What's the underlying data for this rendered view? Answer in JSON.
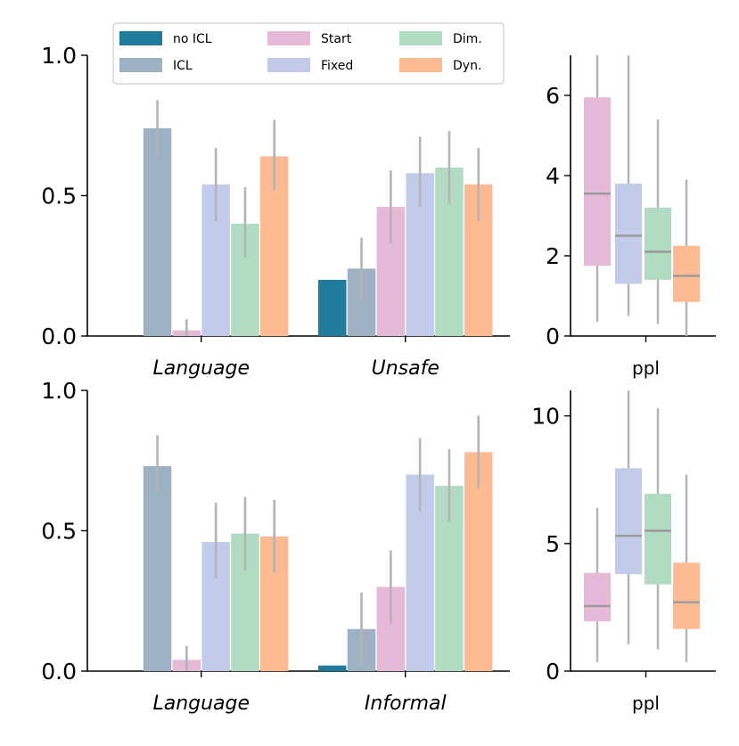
{
  "legend": [
    {
      "label": "no ICL",
      "color": "#217b9c"
    },
    {
      "label": "ICL",
      "color": "#9db1c2"
    },
    {
      "label": "Start",
      "color": "#e6b9d9"
    },
    {
      "label": "Fixed",
      "color": "#c3cbea"
    },
    {
      "label": "Dim.",
      "color": "#b1dcc1"
    },
    {
      "label": "Dyn.",
      "color": "#fdbb93"
    }
  ],
  "chart_data": [
    {
      "type": "bar",
      "panel": "top-left",
      "categories": [
        "Language",
        "Unsafe"
      ],
      "ylim": [
        0,
        1.0
      ],
      "yticks": [
        "0.0",
        "0.5",
        "1.0"
      ],
      "series": [
        {
          "name": "no ICL",
          "values": [
            null,
            0.2
          ],
          "err": [
            null,
            [
              0.2,
              0.2
            ]
          ]
        },
        {
          "name": "ICL",
          "values": [
            0.74,
            0.24
          ],
          "err": [
            [
              0.64,
              0.84
            ],
            [
              0.12,
              0.35
            ]
          ]
        },
        {
          "name": "Start",
          "values": [
            0.02,
            0.46
          ],
          "err": [
            [
              0.0,
              0.06
            ],
            [
              0.33,
              0.59
            ]
          ]
        },
        {
          "name": "Fixed",
          "values": [
            0.54,
            0.58
          ],
          "err": [
            [
              0.41,
              0.67
            ],
            [
              0.46,
              0.71
            ]
          ]
        },
        {
          "name": "Dim.",
          "values": [
            0.4,
            0.6
          ],
          "err": [
            [
              0.28,
              0.53
            ],
            [
              0.47,
              0.73
            ]
          ]
        },
        {
          "name": "Dyn.",
          "values": [
            0.64,
            0.54
          ],
          "err": [
            [
              0.52,
              0.77
            ],
            [
              0.41,
              0.67
            ]
          ]
        }
      ]
    },
    {
      "type": "box",
      "panel": "top-right",
      "xlabel": "ppl",
      "ylim": [
        0,
        7
      ],
      "yticks": [
        "0",
        "2",
        "4",
        "6"
      ],
      "boxes": [
        {
          "name": "Start",
          "q1": 1.75,
          "median": 3.55,
          "q3": 5.95,
          "whisker_low": 0.35,
          "whisker_high": 7.0
        },
        {
          "name": "Fixed",
          "q1": 1.3,
          "median": 2.5,
          "q3": 3.8,
          "whisker_low": 0.5,
          "whisker_high": 7.0
        },
        {
          "name": "Dim.",
          "q1": 1.4,
          "median": 2.1,
          "q3": 3.2,
          "whisker_low": 0.3,
          "whisker_high": 5.4
        },
        {
          "name": "Dyn.",
          "q1": 0.85,
          "median": 1.5,
          "q3": 2.25,
          "whisker_low": 0.0,
          "whisker_high": 3.9
        }
      ]
    },
    {
      "type": "bar",
      "panel": "bottom-left",
      "categories": [
        "Language",
        "Informal"
      ],
      "ylim": [
        0,
        1.0
      ],
      "yticks": [
        "0.0",
        "0.5",
        "1.0"
      ],
      "series": [
        {
          "name": "no ICL",
          "values": [
            null,
            0.02
          ],
          "err": [
            null,
            [
              0.02,
              0.02
            ]
          ]
        },
        {
          "name": "ICL",
          "values": [
            0.73,
            0.15
          ],
          "err": [
            [
              0.63,
              0.84
            ],
            [
              0.02,
              0.28
            ]
          ]
        },
        {
          "name": "Start",
          "values": [
            0.04,
            0.3
          ],
          "err": [
            [
              0.0,
              0.09
            ],
            [
              0.17,
              0.43
            ]
          ]
        },
        {
          "name": "Fixed",
          "values": [
            0.46,
            0.7
          ],
          "err": [
            [
              0.33,
              0.6
            ],
            [
              0.57,
              0.83
            ]
          ]
        },
        {
          "name": "Dim.",
          "values": [
            0.49,
            0.66
          ],
          "err": [
            [
              0.36,
              0.62
            ],
            [
              0.53,
              0.79
            ]
          ]
        },
        {
          "name": "Dyn.",
          "values": [
            0.48,
            0.78
          ],
          "err": [
            [
              0.35,
              0.61
            ],
            [
              0.65,
              0.91
            ]
          ]
        }
      ]
    },
    {
      "type": "box",
      "panel": "bottom-right",
      "xlabel": "ppl",
      "ylim": [
        0,
        11
      ],
      "yticks": [
        "0",
        "5",
        "10"
      ],
      "boxes": [
        {
          "name": "Start",
          "q1": 1.95,
          "median": 2.55,
          "q3": 3.85,
          "whisker_low": 0.35,
          "whisker_high": 6.4
        },
        {
          "name": "Fixed",
          "q1": 3.8,
          "median": 5.3,
          "q3": 7.95,
          "whisker_low": 1.05,
          "whisker_high": 11.0
        },
        {
          "name": "Dim.",
          "q1": 3.4,
          "median": 5.5,
          "q3": 6.95,
          "whisker_low": 0.85,
          "whisker_high": 10.3
        },
        {
          "name": "Dyn.",
          "q1": 1.65,
          "median": 2.7,
          "q3": 4.25,
          "whisker_low": 0.35,
          "whisker_high": 7.7
        }
      ]
    }
  ]
}
